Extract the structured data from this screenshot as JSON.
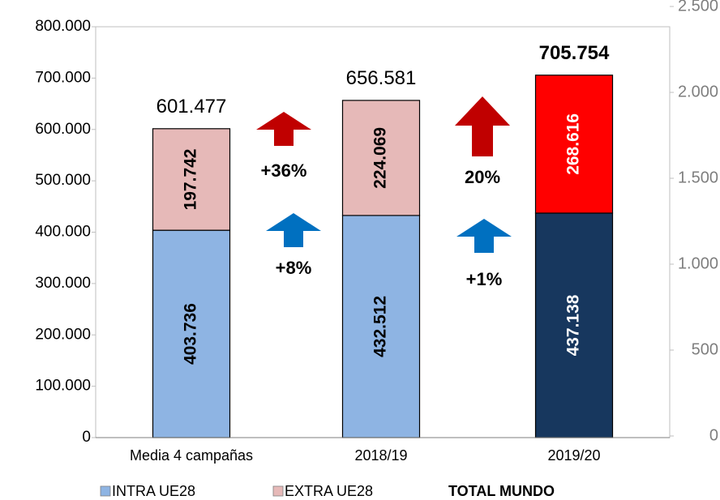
{
  "chart_data": {
    "type": "stacked_bar",
    "categories": [
      "Media 4 campañas",
      "2018/19",
      "2019/20"
    ],
    "series": [
      {
        "name": "INTRA UE28",
        "color": "#8eb4e3",
        "colors": [
          "#8eb4e3",
          "#8eb4e3",
          "#17375e"
        ],
        "label_colors": [
          "#000000",
          "#000000",
          "#ffffff"
        ],
        "values": [
          403736,
          432512,
          437138
        ],
        "value_labels": [
          "403.736",
          "432.512",
          "437.138"
        ]
      },
      {
        "name": "EXTRA UE28",
        "color": "#e6b9b8",
        "colors": [
          "#e6b9b8",
          "#e6b9b8",
          "#ff0000"
        ],
        "label_colors": [
          "#000000",
          "#000000",
          "#ffffff"
        ],
        "values": [
          197742,
          224069,
          268616
        ],
        "value_labels": [
          "197.742",
          "224.069",
          "268.616"
        ]
      },
      {
        "name": "TOTAL MUNDO",
        "values": [
          601477,
          656581,
          705754
        ],
        "value_labels": [
          "601.477",
          "656.581",
          "705.754"
        ],
        "label_bold": [
          false,
          false,
          true
        ]
      }
    ],
    "ylim": [
      0,
      800000
    ],
    "yticks": [
      0,
      {
        "value": 100000,
        "label": "100.000"
      },
      {
        "value": 200000,
        "label": "200.000"
      },
      {
        "value": 300000,
        "label": "300.000"
      },
      {
        "value": 400000,
        "label": "400.000"
      },
      {
        "value": 500000,
        "label": "500.000"
      },
      {
        "value": 600000,
        "label": "600.000"
      },
      {
        "value": 700000,
        "label": "700.000"
      },
      {
        "value": 800000,
        "label": "800.000"
      }
    ],
    "y2lim": [
      0,
      2500
    ],
    "y2ticks": [
      0,
      500,
      {
        "value": 1000,
        "label": "1.000"
      },
      {
        "value": 1500,
        "label": "1.500"
      },
      {
        "value": 2000,
        "label": "2.000"
      },
      {
        "value": 2500,
        "label": "2.500"
      }
    ],
    "annotations": [
      {
        "text": "+36%",
        "color": "#c00000"
      },
      {
        "text": "+8%",
        "color": "#0070c0"
      },
      {
        "text": "20%",
        "color": "#c00000"
      },
      {
        "text": "+1%",
        "color": "#0070c0"
      }
    ]
  }
}
